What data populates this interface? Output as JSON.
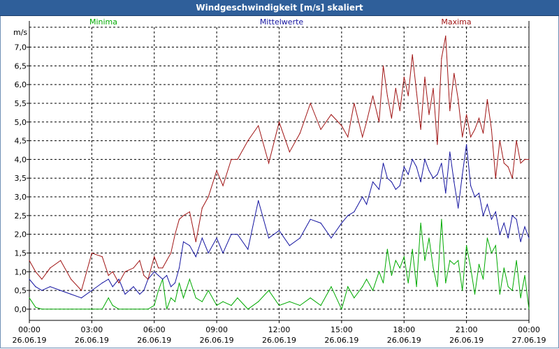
{
  "window": {
    "title": "Windgeschwindigkeit [m/s] skaliert"
  },
  "chart_data": {
    "type": "line",
    "title": "Windgeschwindigkeit [m/s] skaliert",
    "ylabel": "m/s",
    "ylim": [
      -0.3,
      7.7
    ],
    "y_ticks": [
      0.0,
      0.5,
      1.0,
      1.5,
      2.0,
      2.5,
      3.0,
      3.5,
      4.0,
      4.5,
      5.0,
      5.5,
      6.0,
      6.5,
      7.0
    ],
    "y_tick_labels": [
      "0,0",
      "0,5",
      "1,0",
      "1,5",
      "2,0",
      "2,5",
      "3,0",
      "3,5",
      "4,0",
      "4,5",
      "5,0",
      "5,5",
      "6,0",
      "6,5",
      "7,0"
    ],
    "xlim": [
      0,
      24
    ],
    "x_ticks": [
      0,
      3,
      6,
      9,
      12,
      15,
      18,
      21,
      24
    ],
    "x_tick_times": [
      "00:00",
      "03:00",
      "06:00",
      "09:00",
      "12:00",
      "15:00",
      "18:00",
      "21:00",
      "00:00"
    ],
    "x_tick_dates": [
      "26.06.19",
      "26.06.19",
      "26.06.19",
      "26.06.19",
      "26.06.19",
      "26.06.19",
      "26.06.19",
      "26.06.19",
      "27.06.19"
    ],
    "x_unit": "hours since 26.06.19 00:00",
    "grid": true,
    "series": [
      {
        "name": "Minima",
        "color": "#00aa00",
        "x": [
          0,
          0.3,
          0.6,
          1,
          1.5,
          2,
          2.5,
          3,
          3.5,
          3.8,
          4,
          4.3,
          4.6,
          5,
          5.3,
          5.5,
          5.7,
          6,
          6.2,
          6.4,
          6.6,
          6.8,
          7,
          7.2,
          7.4,
          7.7,
          8,
          8.3,
          8.6,
          9,
          9.3,
          9.7,
          10,
          10.5,
          11,
          11.5,
          12,
          12.5,
          13,
          13.5,
          14,
          14.5,
          15,
          15.3,
          15.6,
          16,
          16.2,
          16.5,
          16.8,
          17,
          17.2,
          17.4,
          17.6,
          17.8,
          18,
          18.2,
          18.4,
          18.6,
          18.8,
          19,
          19.2,
          19.4,
          19.6,
          19.8,
          20,
          20.2,
          20.4,
          20.6,
          20.8,
          21,
          21.2,
          21.4,
          21.6,
          21.8,
          22,
          22.2,
          22.4,
          22.6,
          22.8,
          23,
          23.2,
          23.4,
          23.6,
          23.8,
          24
        ],
        "values": [
          0.3,
          0.05,
          0.0,
          0.0,
          0.0,
          0.0,
          0.0,
          0.0,
          0.0,
          0.3,
          0.1,
          0.0,
          0.0,
          0.0,
          0.0,
          0.0,
          0.0,
          0.1,
          0.5,
          0.8,
          0.0,
          0.3,
          0.2,
          0.7,
          0.3,
          0.8,
          0.3,
          0.2,
          0.5,
          0.1,
          0.2,
          0.1,
          0.3,
          0.0,
          0.2,
          0.5,
          0.1,
          0.2,
          0.1,
          0.3,
          0.1,
          0.6,
          0.0,
          0.6,
          0.3,
          0.6,
          0.8,
          0.5,
          1.0,
          0.7,
          1.6,
          0.9,
          1.3,
          1.1,
          1.4,
          0.7,
          1.6,
          0.6,
          2.3,
          1.3,
          1.9,
          1.1,
          0.6,
          2.4,
          0.7,
          1.3,
          1.2,
          1.3,
          0.5,
          1.7,
          1.1,
          0.4,
          1.2,
          0.8,
          1.9,
          1.5,
          1.7,
          0.4,
          1.1,
          0.6,
          0.5,
          1.3,
          0.3,
          0.9,
          0.0
        ]
      },
      {
        "name": "Mittelwerte",
        "color": "#1414a0",
        "x": [
          0,
          0.3,
          0.6,
          1,
          1.5,
          2,
          2.5,
          3,
          3.5,
          3.8,
          4,
          4.3,
          4.6,
          5,
          5.3,
          5.5,
          5.7,
          6,
          6.2,
          6.4,
          6.6,
          6.8,
          7,
          7.2,
          7.4,
          7.7,
          8,
          8.3,
          8.6,
          9,
          9.3,
          9.7,
          10,
          10.5,
          11,
          11.5,
          12,
          12.5,
          13,
          13.5,
          14,
          14.5,
          15,
          15.3,
          15.6,
          16,
          16.2,
          16.5,
          16.8,
          17,
          17.2,
          17.4,
          17.6,
          17.8,
          18,
          18.2,
          18.4,
          18.6,
          18.8,
          19,
          19.2,
          19.4,
          19.6,
          19.8,
          20,
          20.2,
          20.4,
          20.6,
          20.8,
          21,
          21.2,
          21.4,
          21.6,
          21.8,
          22,
          22.2,
          22.4,
          22.6,
          22.8,
          23,
          23.2,
          23.4,
          23.6,
          23.8,
          24
        ],
        "values": [
          0.8,
          0.6,
          0.5,
          0.6,
          0.5,
          0.4,
          0.3,
          0.5,
          0.7,
          0.8,
          0.6,
          0.8,
          0.4,
          0.6,
          0.4,
          0.5,
          0.8,
          1.0,
          0.9,
          0.8,
          0.9,
          0.6,
          0.7,
          1.1,
          1.8,
          1.7,
          1.4,
          1.9,
          1.5,
          1.9,
          1.5,
          2.0,
          2.0,
          1.6,
          2.9,
          1.9,
          2.1,
          1.7,
          1.9,
          2.4,
          2.3,
          1.9,
          2.3,
          2.5,
          2.6,
          3.0,
          2.8,
          3.4,
          3.2,
          3.9,
          3.5,
          3.4,
          3.2,
          3.3,
          3.8,
          3.6,
          4.0,
          3.8,
          3.4,
          4.0,
          3.7,
          3.5,
          3.6,
          3.9,
          3.1,
          4.2,
          3.4,
          2.7,
          3.6,
          4.4,
          3.3,
          3.0,
          3.1,
          2.5,
          2.8,
          2.4,
          2.6,
          2.0,
          2.3,
          1.9,
          2.5,
          2.4,
          1.8,
          2.2,
          1.9
        ]
      },
      {
        "name": "Maxima",
        "color": "#a01414",
        "x": [
          0,
          0.3,
          0.6,
          1,
          1.5,
          2,
          2.5,
          3,
          3.5,
          3.8,
          4,
          4.3,
          4.6,
          5,
          5.3,
          5.5,
          5.7,
          6,
          6.2,
          6.4,
          6.6,
          6.8,
          7,
          7.2,
          7.4,
          7.7,
          8,
          8.3,
          8.6,
          9,
          9.3,
          9.7,
          10,
          10.5,
          11,
          11.5,
          12,
          12.5,
          13,
          13.5,
          14,
          14.5,
          15,
          15.3,
          15.6,
          16,
          16.2,
          16.5,
          16.8,
          17,
          17.2,
          17.4,
          17.6,
          17.8,
          18,
          18.2,
          18.4,
          18.6,
          18.8,
          19,
          19.2,
          19.4,
          19.6,
          19.8,
          20,
          20.2,
          20.4,
          20.6,
          20.8,
          21,
          21.2,
          21.4,
          21.6,
          21.8,
          22,
          22.2,
          22.4,
          22.6,
          22.8,
          23,
          23.2,
          23.4,
          23.6,
          23.8,
          24
        ],
        "values": [
          1.3,
          1.0,
          0.8,
          1.1,
          1.3,
          0.8,
          0.5,
          1.5,
          1.4,
          0.9,
          1.0,
          0.7,
          1.0,
          1.1,
          1.3,
          0.9,
          0.8,
          1.4,
          1.1,
          1.1,
          1.3,
          1.5,
          2.0,
          2.4,
          2.5,
          2.6,
          1.8,
          2.7,
          3.0,
          3.7,
          3.3,
          4.0,
          4.0,
          4.5,
          4.9,
          3.9,
          5.0,
          4.2,
          4.7,
          5.5,
          4.8,
          5.2,
          4.9,
          4.6,
          5.5,
          4.6,
          5.0,
          5.7,
          5.0,
          6.5,
          5.7,
          5.1,
          5.9,
          5.3,
          6.2,
          5.7,
          6.8,
          5.8,
          4.8,
          6.2,
          5.2,
          5.9,
          4.4,
          6.7,
          7.3,
          5.3,
          6.3,
          5.6,
          4.6,
          5.2,
          4.6,
          4.8,
          5.1,
          4.7,
          5.6,
          4.8,
          3.5,
          4.5,
          3.9,
          3.8,
          3.5,
          4.5,
          3.9,
          4.0,
          4.0
        ]
      }
    ]
  }
}
